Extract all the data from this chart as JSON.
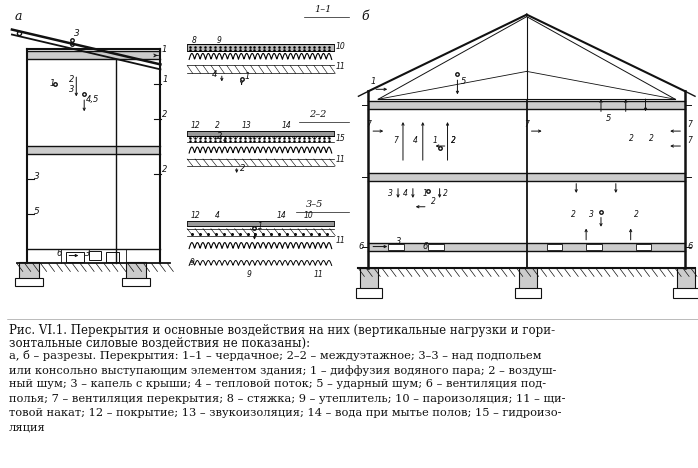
{
  "text_color": "#111111",
  "line_color": "#111111",
  "bg_color": "#ffffff",
  "title_line1": "Рис. VI.1. Перекрытия и основные воздействия на них (вертикальные нагрузки и гори-",
  "title_line2": "зонтальные силовые воздействия не показаны):",
  "caption_lines": [
    "а, б – разрезы. Перекрытия: 1–1 – чердачное; 2–2 – междуэтажное; 3–3 – над подпольем",
    "или консольно выступающим элементом здания; 1 – диффузия водяного пара; 2 – воздуш-",
    "ный шум; 3 – капель с крыши; 4 – тепловой поток; 5 – ударный шум; 6 – вентиляция под-",
    "полья; 7 – вентиляция перекрытия; 8 – стяжка; 9 – утеплитель; 10 – пароизоляция; 11 – щи-",
    "товой накат; 12 – покрытие; 13 – звукоизоляция; 14 – вода при мытье полов; 15 – гидроизо-",
    "ляция"
  ]
}
